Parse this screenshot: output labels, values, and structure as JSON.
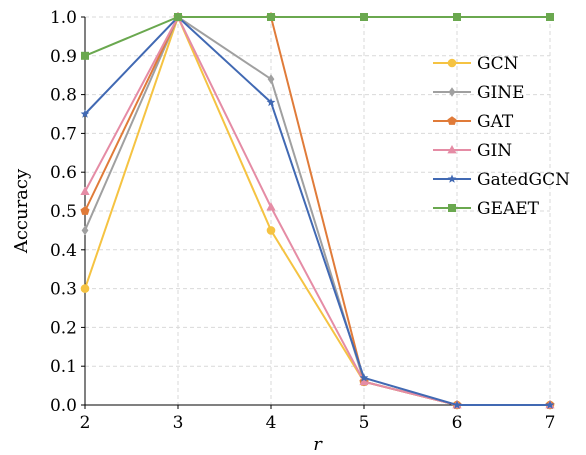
{
  "chart_data": {
    "type": "line",
    "xlabel": "r",
    "ylabel": "Accuracy",
    "x": [
      2,
      3,
      4,
      5,
      6,
      7
    ],
    "xlim": [
      2,
      7
    ],
    "ylim": [
      0,
      1
    ],
    "x_ticks": [
      "2",
      "3",
      "4",
      "5",
      "6",
      "7"
    ],
    "y_ticks": [
      "0.0",
      "0.1",
      "0.2",
      "0.3",
      "0.4",
      "0.5",
      "0.6",
      "0.7",
      "0.8",
      "0.9",
      "1.0"
    ],
    "grid": true,
    "legend_position": "right",
    "series": [
      {
        "name": "GCN",
        "color": "#f5c342",
        "marker": "circle",
        "values": [
          0.3,
          1.0,
          0.45,
          0.06,
          0.0,
          0.0
        ]
      },
      {
        "name": "GINE",
        "color": "#a0a0a0",
        "marker": "diamond",
        "values": [
          0.45,
          1.0,
          0.84,
          0.06,
          0.0,
          0.0
        ]
      },
      {
        "name": "GAT",
        "color": "#e07b39",
        "marker": "pentagon",
        "values": [
          0.5,
          1.0,
          1.0,
          0.06,
          0.0,
          0.0
        ]
      },
      {
        "name": "GIN",
        "color": "#e58ca5",
        "marker": "triangle",
        "values": [
          0.55,
          1.0,
          0.51,
          0.06,
          0.0,
          0.0
        ]
      },
      {
        "name": "GatedGCN",
        "color": "#4169b3",
        "marker": "star",
        "values": [
          0.75,
          1.0,
          0.78,
          0.07,
          0.0,
          0.0
        ]
      },
      {
        "name": "GEAET",
        "color": "#6aa84f",
        "marker": "square",
        "values": [
          0.9,
          1.0,
          1.0,
          1.0,
          1.0,
          1.0
        ]
      }
    ]
  }
}
